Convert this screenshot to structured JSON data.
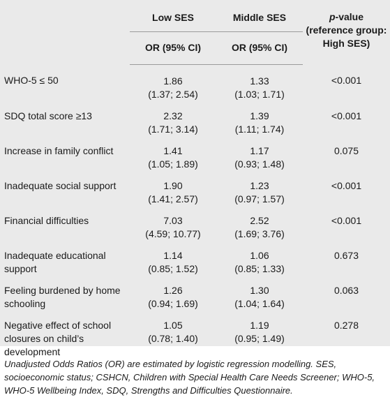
{
  "header": {
    "col_low": "Low SES",
    "col_mid": "Middle SES",
    "col_p_italic": "p",
    "col_p_rest": "-value",
    "col_p_line2": "(reference group:",
    "col_p_line3": "High SES)",
    "or_low": "OR (95% CI)",
    "or_mid": "OR (95% CI)"
  },
  "rows": [
    {
      "label": "WHO-5 ≤ 50",
      "low_or": "1.86",
      "low_ci": "(1.37; 2.54)",
      "mid_or": "1.33",
      "mid_ci": "(1.03; 1.71)",
      "p": "<0.001"
    },
    {
      "label": "SDQ total score ≥13",
      "low_or": "2.32",
      "low_ci": "(1.71; 3.14)",
      "mid_or": "1.39",
      "mid_ci": "(1.11; 1.74)",
      "p": "<0.001"
    },
    {
      "label": "Increase in family conflict",
      "low_or": "1.41",
      "low_ci": "(1.05; 1.89)",
      "mid_or": "1.17",
      "mid_ci": "(0.93; 1.48)",
      "p": "0.075"
    },
    {
      "label": "Inadequate social support",
      "low_or": "1.90",
      "low_ci": "(1.41; 2.57)",
      "mid_or": "1.23",
      "mid_ci": "(0.97; 1.57)",
      "p": "<0.001"
    },
    {
      "label": "Financial difficulties",
      "low_or": "7.03",
      "low_ci": "(4.59; 10.77)",
      "mid_or": "2.52",
      "mid_ci": "(1.69; 3.76)",
      "p": "<0.001"
    },
    {
      "label": "Inadequate educational support",
      "low_or": "1.14",
      "low_ci": "(0.85; 1.52)",
      "mid_or": "1.06",
      "mid_ci": "(0.85; 1.33)",
      "p": "0.673"
    },
    {
      "label": "Feeling burdened by home schooling",
      "low_or": "1.26",
      "low_ci": "(0.94; 1.69)",
      "mid_or": "1.30",
      "mid_ci": "(1.04; 1.64)",
      "p": "0.063"
    },
    {
      "label": "Negative effect of school closures on child’s development",
      "low_or": "1.05",
      "low_ci": "(0.78; 1.40)",
      "mid_or": "1.19",
      "mid_ci": "(0.95; 1.49)",
      "p": "0.278"
    }
  ],
  "footnote": "Unadjusted Odds Ratios (OR) are estimated by logistic regression modelling. SES, socioeconomic status; CSHCN, Children with Special Health Care Needs Screener; WHO-5, WHO-5 Wellbeing Index, SDQ, Strengths and Difficulties Questionnaire."
}
